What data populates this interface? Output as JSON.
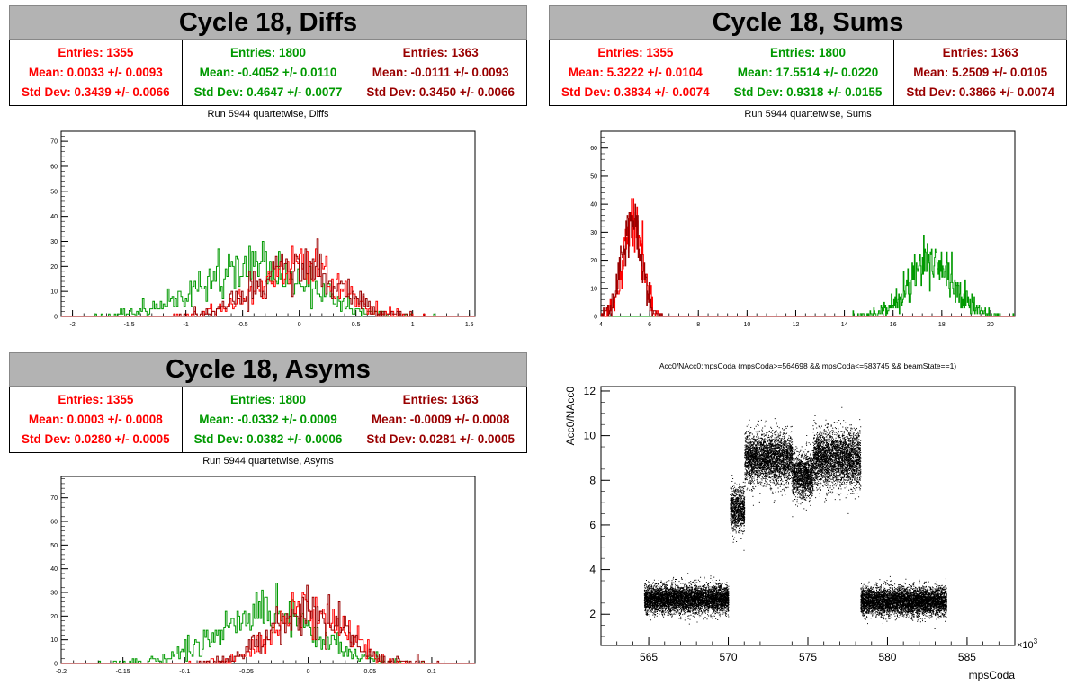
{
  "colors": {
    "red": "#ff0000",
    "green": "#009900",
    "darkred": "#990000"
  },
  "panels": [
    {
      "id": "diffs",
      "title": "Cycle 18, Diffs",
      "caption": "Run 5944 quartetwise, Diffs",
      "stats": [
        {
          "color": "red",
          "entries": "Entries: 1355",
          "mean": "Mean: 0.0033 +/- 0.0093",
          "std": "Std Dev: 0.3439 +/- 0.0066"
        },
        {
          "color": "green",
          "entries": "Entries: 1800",
          "mean": "Mean: -0.4052 +/- 0.0110",
          "std": "Std Dev: 0.4647 +/- 0.0077"
        },
        {
          "color": "darkred",
          "entries": "Entries: 1363",
          "mean": "Mean: -0.0111 +/- 0.0093",
          "std": "Std Dev: 0.3450 +/- 0.0066"
        }
      ]
    },
    {
      "id": "sums",
      "title": "Cycle 18, Sums",
      "caption": "Run 5944 quartetwise, Sums",
      "stats": [
        {
          "color": "red",
          "entries": "Entries: 1355",
          "mean": "Mean: 5.3222 +/- 0.0104",
          "std": "Std Dev: 0.3834 +/- 0.0074"
        },
        {
          "color": "green",
          "entries": "Entries: 1800",
          "mean": "Mean: 17.5514 +/- 0.0220",
          "std": "Std Dev: 0.9318 +/- 0.0155"
        },
        {
          "color": "darkred",
          "entries": "Entries: 1363",
          "mean": "Mean: 5.2509 +/- 0.0105",
          "std": "Std Dev: 0.3866 +/- 0.0074"
        }
      ]
    },
    {
      "id": "asyms",
      "title": "Cycle 18, Asyms",
      "caption": "Run 5944 quartetwise, Asyms",
      "stats": [
        {
          "color": "red",
          "entries": "Entries: 1355",
          "mean": "Mean: 0.0003 +/- 0.0008",
          "std": "Std Dev: 0.0280 +/- 0.0005"
        },
        {
          "color": "green",
          "entries": "Entries: 1800",
          "mean": "Mean: -0.0332 +/- 0.0009",
          "std": "Std Dev: 0.0382 +/- 0.0006"
        },
        {
          "color": "darkred",
          "entries": "Entries: 1363",
          "mean": "Mean: -0.0009 +/- 0.0008",
          "std": "Std Dev: 0.0281 +/- 0.0005"
        }
      ]
    }
  ],
  "chart_data": [
    {
      "type": "histogram",
      "id": "diffs-hist",
      "xlim": [
        -2.1,
        1.55
      ],
      "ylim": [
        0,
        74
      ],
      "xticks": [
        "-2",
        "-1.5",
        "-1",
        "-0.5",
        "0",
        "0.5",
        "1",
        "1.5"
      ],
      "xtick_values": [
        -2,
        -1.5,
        -1,
        -0.5,
        0,
        0.5,
        1,
        1.5
      ],
      "yticks": [
        "0",
        "10",
        "20",
        "30",
        "40",
        "50",
        "60",
        "70"
      ],
      "ytick_values": [
        0,
        10,
        20,
        30,
        40,
        50,
        60,
        70
      ],
      "series": [
        {
          "color": "green",
          "mean": -0.4052,
          "std": 0.4647,
          "entries": 1800
        },
        {
          "color": "red",
          "mean": 0.0033,
          "std": 0.3439,
          "entries": 1355
        },
        {
          "color": "darkred",
          "mean": -0.0111,
          "std": 0.345,
          "entries": 1363
        }
      ]
    },
    {
      "type": "histogram",
      "id": "sums-hist",
      "xlim": [
        4,
        21
      ],
      "ylim": [
        0,
        66
      ],
      "xticks": [
        "4",
        "6",
        "8",
        "10",
        "12",
        "14",
        "16",
        "18",
        "20"
      ],
      "xtick_values": [
        4,
        6,
        8,
        10,
        12,
        14,
        16,
        18,
        20
      ],
      "yticks": [
        "0",
        "10",
        "20",
        "30",
        "40",
        "50",
        "60"
      ],
      "ytick_values": [
        0,
        10,
        20,
        30,
        40,
        50,
        60
      ],
      "series": [
        {
          "color": "green",
          "mean": 17.5514,
          "std": 0.9318,
          "entries": 1800
        },
        {
          "color": "red",
          "mean": 5.3222,
          "std": 0.3834,
          "entries": 1355
        },
        {
          "color": "darkred",
          "mean": 5.2509,
          "std": 0.3866,
          "entries": 1363
        }
      ]
    },
    {
      "type": "histogram",
      "id": "asyms-hist",
      "xlim": [
        -0.2,
        0.135
      ],
      "ylim": [
        0,
        79
      ],
      "xticks": [
        "-0.2",
        "-0.15",
        "-0.1",
        "-0.05",
        "0",
        "0.05",
        "0.1"
      ],
      "xtick_values": [
        -0.2,
        -0.15,
        -0.1,
        -0.05,
        0,
        0.05,
        0.1
      ],
      "yticks": [
        "0",
        "10",
        "20",
        "30",
        "40",
        "50",
        "60",
        "70"
      ],
      "ytick_values": [
        0,
        10,
        20,
        30,
        40,
        50,
        60,
        70
      ],
      "series": [
        {
          "color": "green",
          "mean": -0.0332,
          "std": 0.0382,
          "entries": 1800
        },
        {
          "color": "red",
          "mean": 0.0003,
          "std": 0.028,
          "entries": 1355
        },
        {
          "color": "darkred",
          "mean": -0.0009,
          "std": 0.0281,
          "entries": 1363
        }
      ]
    },
    {
      "type": "scatter",
      "id": "acc0-scatter",
      "title": "Acc0/NAcc0:mpsCoda (mpsCoda>=564698 && mpsCoda<=583745 && beamState==1)",
      "xlabel": "mpsCoda",
      "ylabel": "Acc0/NAcc0",
      "x_exponent_label": "×10",
      "x_exponent": "3",
      "xlim": [
        562,
        588
      ],
      "ylim": [
        0.6,
        12.2
      ],
      "xticks": [
        "565",
        "570",
        "575",
        "580",
        "585"
      ],
      "xtick_values": [
        565,
        570,
        575,
        580,
        585
      ],
      "yticks": [
        "2",
        "4",
        "6",
        "8",
        "10",
        "12"
      ],
      "ytick_values": [
        2,
        4,
        6,
        8,
        10,
        12
      ],
      "clusters": [
        {
          "x": [
            564.7,
            570.0
          ],
          "ymean": 2.7,
          "ystd": 0.3
        },
        {
          "x": [
            570.1,
            571.0
          ],
          "ymean": 6.7,
          "ystd": 0.5
        },
        {
          "x": [
            571.0,
            574.0
          ],
          "ymean": 9.0,
          "ystd": 0.55
        },
        {
          "x": [
            574.0,
            575.3
          ],
          "ymean": 8.2,
          "ystd": 0.5
        },
        {
          "x": [
            575.3,
            578.3
          ],
          "ymean": 9.0,
          "ystd": 0.6
        },
        {
          "x": [
            578.3,
            583.7
          ],
          "ymean": 2.6,
          "ystd": 0.3
        }
      ]
    }
  ]
}
